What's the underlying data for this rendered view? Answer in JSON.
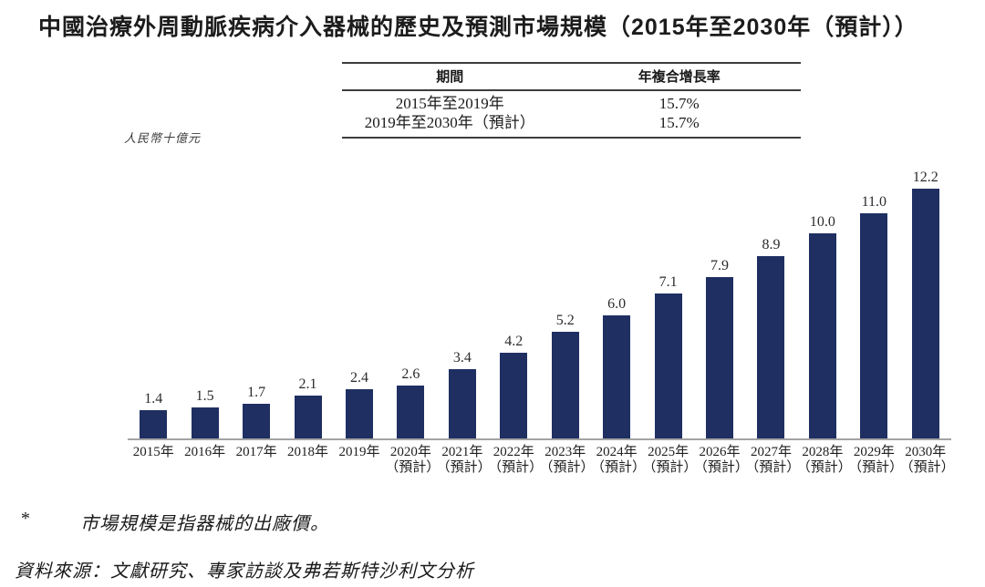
{
  "title": "中國治療外周動脈疾病介入器械的歷史及預測市場規模（2015年至2030年（預計））",
  "cagr_table": {
    "headers": {
      "period": "期間",
      "cagr": "年複合增長率"
    },
    "rows": [
      {
        "period": "2015年至2019年",
        "cagr": "15.7%"
      },
      {
        "period": "2019年至2030年（預計）",
        "cagr": "15.7%"
      }
    ]
  },
  "unit_label": "人民幣十億元",
  "chart_data": {
    "type": "bar",
    "title": "中國治療外周動脈疾病介入器械的歷史及預測市場規模（2015年至2030年（預計））",
    "ylabel": "人民幣十億元",
    "xlabel": "",
    "ylim": [
      0,
      12.2
    ],
    "grid": false,
    "legend": "none",
    "bar_color": "#1f2f62",
    "categories": [
      "2015年",
      "2016年",
      "2017年",
      "2018年",
      "2019年",
      "2020年",
      "2021年",
      "2022年",
      "2023年",
      "2024年",
      "2025年",
      "2026年",
      "2027年",
      "2028年",
      "2029年",
      "2030年"
    ],
    "category_notes": [
      "",
      "",
      "",
      "",
      "",
      "（預計）",
      "（預計）",
      "（預計）",
      "（預計）",
      "（預計）",
      "（預計）",
      "（預計）",
      "（預計）",
      "（預計）",
      "（預計）",
      "（預計）"
    ],
    "values": [
      1.4,
      1.5,
      1.7,
      2.1,
      2.4,
      2.6,
      3.4,
      4.2,
      5.2,
      6.0,
      7.1,
      7.9,
      8.9,
      10.0,
      11.0,
      12.2
    ],
    "value_labels": [
      "1.4",
      "1.5",
      "1.7",
      "2.1",
      "2.4",
      "2.6",
      "3.4",
      "4.2",
      "5.2",
      "6.0",
      "7.1",
      "7.9",
      "8.9",
      "10.0",
      "11.0",
      "12.2"
    ]
  },
  "footnote": {
    "marker": "*",
    "text": "市場規模是指器械的出廠價。"
  },
  "source": "資料來源：文獻研究、專家訪談及弗若斯特沙利文分析"
}
